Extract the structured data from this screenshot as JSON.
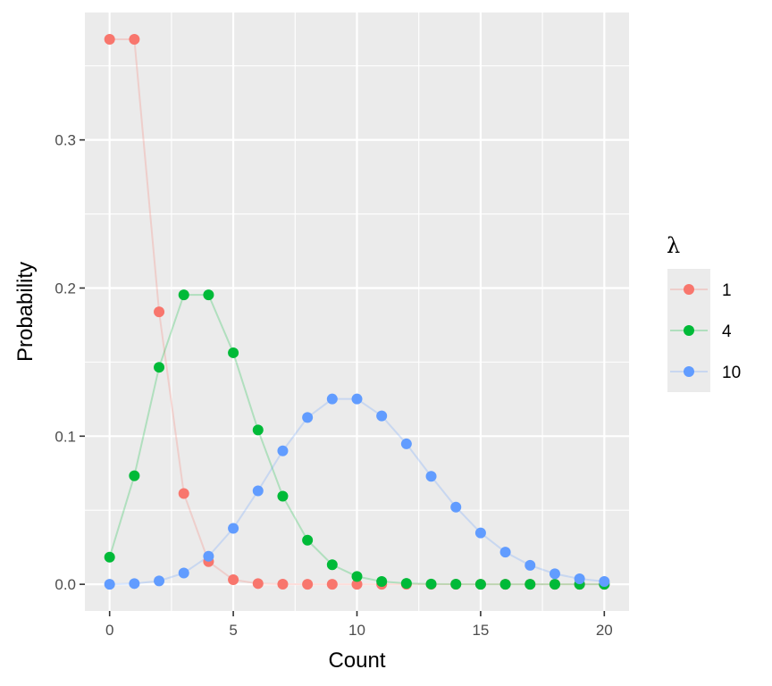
{
  "chart_data": {
    "type": "line",
    "xlabel": "Count",
    "ylabel": "Probability",
    "xlim": [
      -1,
      21
    ],
    "ylim": [
      -0.018,
      0.386
    ],
    "x_ticks": [
      0,
      5,
      10,
      15,
      20
    ],
    "y_ticks": [
      0.0,
      0.1,
      0.2,
      0.3
    ],
    "x_tick_labels": [
      "0",
      "5",
      "10",
      "15",
      "20"
    ],
    "y_tick_labels": [
      "0.0",
      "0.1",
      "0.2",
      "0.3"
    ],
    "grid": true,
    "legend": {
      "title": "λ",
      "position": "right"
    },
    "x": [
      0,
      1,
      2,
      3,
      4,
      5,
      6,
      7,
      8,
      9,
      10,
      11,
      12,
      13,
      14,
      15,
      16,
      17,
      18,
      19,
      20
    ],
    "series": [
      {
        "name": "1",
        "color": "#F8766D",
        "values": [
          0.3679,
          0.3679,
          0.1839,
          0.0613,
          0.0153,
          0.0031,
          0.0005,
          0.0001,
          0.0,
          0.0,
          0.0,
          0.0,
          0.0,
          0.0,
          0.0,
          0.0,
          0.0,
          0.0,
          0.0,
          0.0,
          0.0
        ]
      },
      {
        "name": "4",
        "color": "#00BA38",
        "values": [
          0.0183,
          0.0733,
          0.1465,
          0.1954,
          0.1954,
          0.1563,
          0.1042,
          0.0595,
          0.0298,
          0.0132,
          0.0053,
          0.0019,
          0.0006,
          0.0002,
          0.0001,
          0.0,
          0.0,
          0.0,
          0.0,
          0.0,
          0.0
        ]
      },
      {
        "name": "10",
        "color": "#619CFF",
        "values": [
          0.0,
          0.0005,
          0.0023,
          0.0076,
          0.0189,
          0.0378,
          0.0631,
          0.0901,
          0.1126,
          0.1251,
          0.1251,
          0.1137,
          0.0948,
          0.0729,
          0.0521,
          0.0347,
          0.0217,
          0.0128,
          0.0071,
          0.0037,
          0.0019
        ]
      }
    ]
  }
}
